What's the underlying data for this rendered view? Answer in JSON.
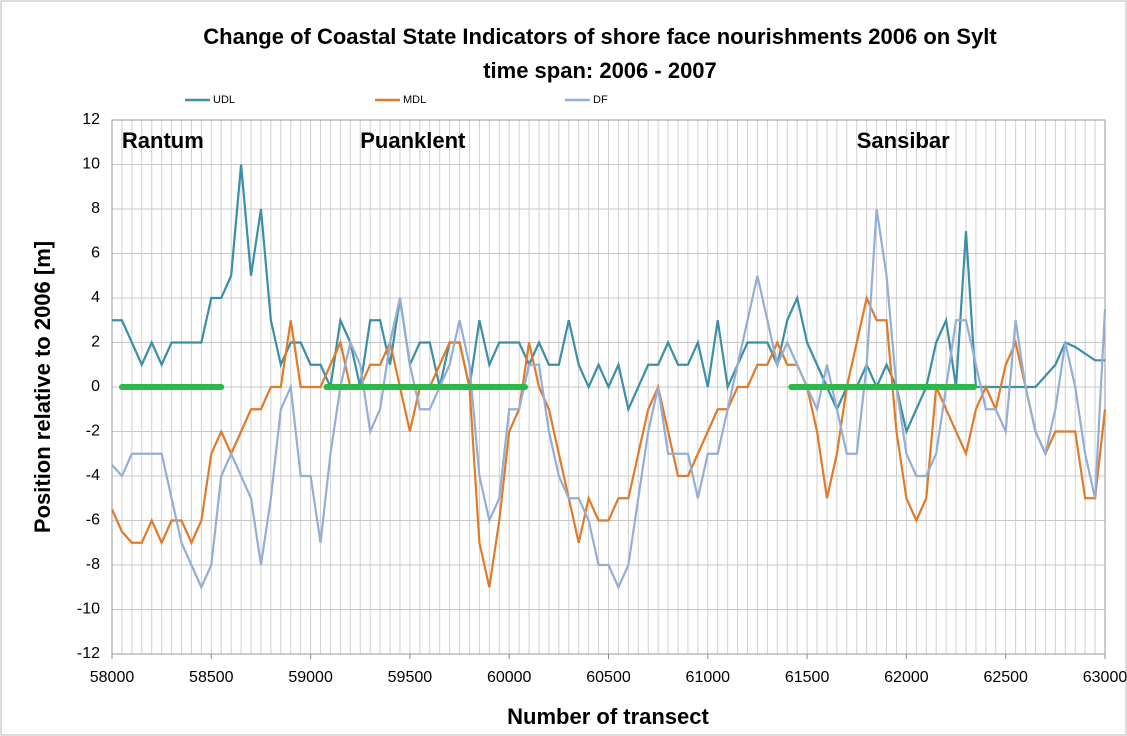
{
  "chart_data": {
    "type": "line",
    "title": "Change of Coastal State Indicators of shore face nourishments 2006 on Sylt",
    "subtitle": "time span: 2006 - 2007",
    "x_label": "Number of transect",
    "y_label": "Position relative to 2006 [m]",
    "x": [
      58000,
      58050,
      58100,
      58150,
      58200,
      58250,
      58300,
      58350,
      58400,
      58450,
      58500,
      58550,
      58600,
      58650,
      58700,
      58750,
      58800,
      58850,
      58900,
      58950,
      59000,
      59050,
      59100,
      59150,
      59200,
      59250,
      59300,
      59350,
      59400,
      59450,
      59500,
      59550,
      59600,
      59650,
      59700,
      59750,
      59800,
      59850,
      59900,
      59950,
      60000,
      60050,
      60100,
      60150,
      60200,
      60250,
      60300,
      60350,
      60400,
      60450,
      60500,
      60550,
      60600,
      60650,
      60700,
      60750,
      60800,
      60850,
      60900,
      60950,
      61000,
      61050,
      61100,
      61150,
      61200,
      61250,
      61300,
      61350,
      61400,
      61450,
      61500,
      61550,
      61600,
      61650,
      61700,
      61750,
      61800,
      61850,
      61900,
      61950,
      62000,
      62050,
      62100,
      62150,
      62200,
      62250,
      62300,
      62350,
      62400,
      62450,
      62500,
      62550,
      62600,
      62650,
      62700,
      62750,
      62800,
      62850,
      62900,
      62950,
      63000
    ],
    "series": [
      {
        "name": "UDL",
        "color": "#3b8fa6",
        "values": [
          3,
          3,
          2,
          1,
          2,
          1,
          2,
          2,
          2,
          2,
          4,
          4,
          5,
          10,
          5,
          8,
          3,
          1,
          2,
          2,
          1,
          1,
          0,
          3,
          2,
          0,
          3,
          3,
          1,
          4,
          1,
          2,
          2,
          0,
          2,
          2,
          0,
          3,
          1,
          2,
          2,
          2,
          1,
          2,
          1,
          1,
          3,
          1,
          0,
          1,
          0,
          1,
          -1,
          0,
          1,
          1,
          2,
          1,
          1,
          2,
          0,
          3,
          0,
          1,
          2,
          2,
          2,
          1,
          3,
          4,
          2,
          1,
          0,
          -1,
          0,
          0,
          1,
          0,
          1,
          0,
          -2,
          -1,
          0,
          2,
          3,
          0,
          7,
          0,
          0,
          0,
          0,
          0,
          0,
          0,
          0.5,
          1,
          2,
          1.8,
          1.5,
          1.2,
          1.2
        ]
      },
      {
        "name": "MDL",
        "color": "#e07b2a",
        "values": [
          -5.5,
          -6.5,
          -7,
          -7,
          -6,
          -7,
          -6,
          -6,
          -7,
          -6,
          -3,
          -2,
          -3,
          -2,
          -1,
          -1,
          0,
          0,
          3,
          0,
          0,
          0,
          1,
          2,
          0,
          0,
          1,
          1,
          2,
          0,
          -2,
          0,
          0,
          1,
          2,
          2,
          0,
          -7,
          -9,
          -6,
          -2,
          -1,
          2,
          0,
          -1,
          -3,
          -5,
          -7,
          -5,
          -6,
          -6,
          -5,
          -5,
          -3,
          -1,
          0,
          -2,
          -4,
          -4,
          -3,
          -2,
          -1,
          -1,
          0,
          0,
          1,
          1,
          2,
          1,
          1,
          0,
          -2,
          -5,
          -3,
          0,
          2,
          4,
          3,
          3,
          -2,
          -5,
          -6,
          -5,
          0,
          -1,
          -2,
          -3,
          -1,
          0,
          -1,
          1,
          2,
          0,
          -2,
          -3,
          -2,
          -2,
          -2,
          -5,
          -5,
          -1
        ]
      },
      {
        "name": "DF",
        "color": "#95aed6",
        "values": [
          -3.5,
          -4,
          -3,
          -3,
          -3,
          -3,
          -5,
          -7,
          -8,
          -9,
          -8,
          -4,
          -3,
          -4,
          -5,
          -8,
          -5,
          -1,
          0,
          -4,
          -4,
          -7,
          -3,
          0,
          2,
          1,
          -2,
          -1,
          2,
          4,
          1,
          -1,
          -1,
          0,
          1,
          3,
          1,
          -4,
          -6,
          -5,
          -1,
          -1,
          1,
          1,
          -2,
          -4,
          -5,
          -5,
          -6,
          -8,
          -8,
          -9,
          -8,
          -5,
          -2,
          0,
          -3,
          -3,
          -3,
          -5,
          -3,
          -3,
          -1,
          1,
          3,
          5,
          3,
          1,
          2,
          1,
          0,
          -1,
          1,
          -1,
          -3,
          -3,
          1,
          8,
          5,
          0,
          -3,
          -4,
          -4,
          -3,
          0,
          3,
          3,
          1,
          -1,
          -1,
          -2,
          3,
          0,
          -2,
          -3,
          -1,
          2,
          0,
          -3,
          -5,
          3.5
        ]
      }
    ],
    "highlight_ranges": [
      [
        58050,
        58550
      ],
      [
        59080,
        60080
      ],
      [
        61420,
        62340
      ]
    ],
    "highlight_color": "#2db84a",
    "annotations": [
      {
        "text": "Rantum",
        "x": 58050,
        "y": 11
      },
      {
        "text": "Puanklent",
        "x": 59250,
        "y": 11
      },
      {
        "text": "Sansibar",
        "x": 61750,
        "y": 11
      }
    ],
    "xlim": [
      58000,
      63000
    ],
    "xticks": [
      58000,
      58500,
      59000,
      59500,
      60000,
      60500,
      61000,
      61500,
      62000,
      62500,
      63000
    ],
    "ylim": [
      -12,
      12
    ],
    "yticks": [
      -12,
      -10,
      -8,
      -6,
      -4,
      -2,
      0,
      2,
      4,
      6,
      8,
      10,
      12
    ],
    "grid": true,
    "legend": "top"
  }
}
